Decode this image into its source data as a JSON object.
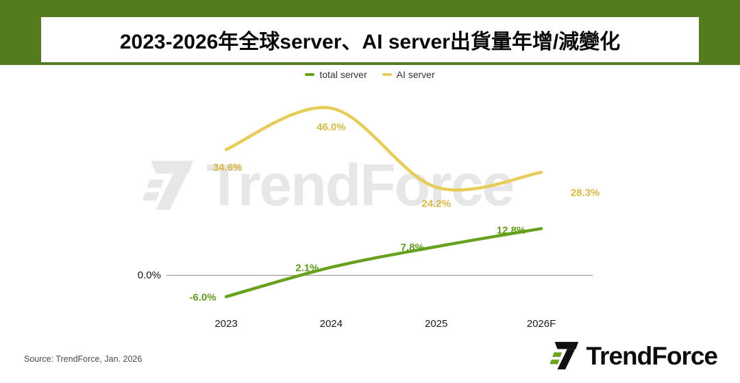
{
  "header": {
    "title": "2023-2026年全球server、AI server出貨量年增/減變化"
  },
  "chart_data": {
    "type": "line",
    "title": "2023-2026年全球server、AI server出貨量年增/減變化",
    "categories": [
      "2023",
      "2024",
      "2025",
      "2026F"
    ],
    "series": [
      {
        "name": "total server",
        "color": "#67a21f",
        "label_color": "#5f9c17",
        "values": [
          -6.0,
          2.1,
          7.8,
          12.8
        ],
        "point_labels": [
          "-6.0%",
          "2.1%",
          "7.8%",
          "12.8%"
        ],
        "label_offsets": [
          [
            -34,
            1
          ],
          [
            -35,
            1
          ],
          [
            -35,
            1
          ],
          [
            -44,
            3
          ]
        ]
      },
      {
        "name": "AI server",
        "color": "#e8cc58",
        "label_color": "#d9b93e",
        "values": [
          34.6,
          46.0,
          24.2,
          28.3
        ],
        "point_labels": [
          "34.6%",
          "46.0%",
          "24.2%",
          "28.3%"
        ],
        "label_offsets": [
          [
            2,
            26
          ],
          [
            0,
            28
          ],
          [
            0,
            24
          ],
          [
            64,
            30
          ]
        ]
      }
    ],
    "zero_label": "0.0%",
    "ylim": [
      -15,
      55
    ],
    "grid": "zero-line-only",
    "legend_position": "top-center"
  },
  "watermark": {
    "text": "TrendForce"
  },
  "source": "Source: TrendForce, Jan. 2026",
  "logo": {
    "text": "TrendForce"
  },
  "icons": {
    "watermark_icon": "trendforce-mark",
    "logo_icon": "trendforce-mark",
    "legend_swatch": "line-dash"
  },
  "colors": {
    "header_green": "#547c1e",
    "total_server_green": "#67a21f",
    "ai_server_yellow": "#e8cc58",
    "watermark_gray": "#e7e7e7"
  }
}
